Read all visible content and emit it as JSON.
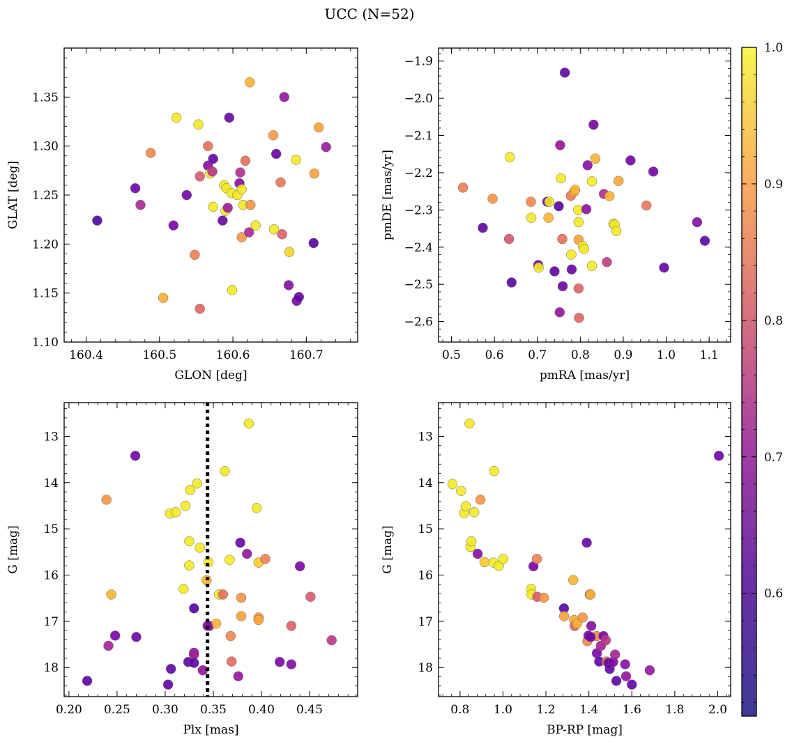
{
  "figure": {
    "title": "UCC (N=52)"
  },
  "colorbar": {
    "ticks": [
      "1.0",
      "0.9",
      "0.8",
      "0.7",
      "0.6"
    ],
    "range": [
      0.51,
      1.0
    ],
    "colormap": "plasma"
  },
  "chart_data": [
    {
      "id": "sky",
      "type": "scatter",
      "xlabel": "GLON [deg]",
      "ylabel": "GLAT [deg]",
      "xlim": [
        160.37,
        160.77
      ],
      "ylim": [
        1.1,
        1.4
      ],
      "xticks": [
        160.4,
        160.5,
        160.6,
        160.7
      ],
      "xtick_labels": [
        "160.4",
        "160.5",
        "160.6",
        "160.7"
      ],
      "yticks": [
        1.1,
        1.15,
        1.2,
        1.25,
        1.3,
        1.35
      ],
      "ytick_labels": [
        "1.10",
        "1.15",
        "1.20",
        "1.25",
        "1.30",
        "1.35"
      ],
      "points": [
        [
          160.415,
          1.224,
          0.52
        ],
        [
          160.467,
          1.257,
          0.56
        ],
        [
          160.474,
          1.24,
          0.66
        ],
        [
          160.488,
          1.293,
          0.84
        ],
        [
          160.505,
          1.145,
          0.9
        ],
        [
          160.519,
          1.219,
          0.58
        ],
        [
          160.523,
          1.329,
          0.98
        ],
        [
          160.537,
          1.25,
          0.57
        ],
        [
          160.548,
          1.189,
          0.83
        ],
        [
          160.553,
          1.322,
          0.98
        ],
        [
          160.555,
          1.134,
          0.78
        ],
        [
          160.555,
          1.269,
          0.76
        ],
        [
          160.566,
          1.3,
          0.8
        ],
        [
          160.566,
          1.28,
          0.6
        ],
        [
          160.569,
          1.272,
          0.98
        ],
        [
          160.573,
          1.287,
          0.55
        ],
        [
          160.572,
          1.274,
          0.69
        ],
        [
          160.573,
          1.238,
          0.98
        ],
        [
          160.586,
          1.224,
          0.55
        ],
        [
          160.588,
          1.26,
          0.98
        ],
        [
          160.59,
          1.234,
          0.98
        ],
        [
          160.591,
          1.257,
          0.98
        ],
        [
          160.593,
          1.237,
          0.64
        ],
        [
          160.595,
          1.329,
          0.56
        ],
        [
          160.598,
          1.252,
          0.98
        ],
        [
          160.599,
          1.153,
          0.98
        ],
        [
          160.606,
          1.25,
          0.98
        ],
        [
          160.609,
          1.262,
          0.6
        ],
        [
          160.61,
          1.273,
          0.67
        ],
        [
          160.612,
          1.256,
          0.98
        ],
        [
          160.612,
          1.207,
          0.86
        ],
        [
          160.614,
          1.24,
          0.98
        ],
        [
          160.617,
          1.285,
          0.8
        ],
        [
          160.622,
          1.212,
          0.66
        ],
        [
          160.623,
          1.365,
          0.91
        ],
        [
          160.624,
          1.24,
          0.86
        ],
        [
          160.631,
          1.219,
          0.98
        ],
        [
          160.655,
          1.311,
          0.87
        ],
        [
          160.656,
          1.215,
          0.98
        ],
        [
          160.659,
          1.292,
          0.55
        ],
        [
          160.665,
          1.263,
          0.81
        ],
        [
          160.667,
          1.21,
          0.77
        ],
        [
          160.67,
          1.35,
          0.62
        ],
        [
          160.676,
          1.158,
          0.6
        ],
        [
          160.677,
          1.192,
          0.95
        ],
        [
          160.686,
          1.286,
          0.98
        ],
        [
          160.687,
          1.142,
          0.58
        ],
        [
          160.69,
          1.146,
          0.55
        ],
        [
          160.71,
          1.201,
          0.53
        ],
        [
          160.711,
          1.272,
          0.88
        ],
        [
          160.717,
          1.319,
          0.88
        ],
        [
          160.727,
          1.299,
          0.63
        ]
      ]
    },
    {
      "id": "pm",
      "type": "scatter",
      "xlabel": "pmRA [mas/yr]",
      "ylabel": "pmDE [mas/yr]",
      "xlim": [
        0.47,
        1.15
      ],
      "ylim": [
        -2.655,
        -1.865
      ],
      "xticks": [
        0.5,
        0.6,
        0.7,
        0.8,
        0.9,
        1.0,
        1.1
      ],
      "xtick_labels": [
        "0.5",
        "0.6",
        "0.7",
        "0.8",
        "0.9",
        "1.0",
        "1.1"
      ],
      "yticks": [
        -2.6,
        -2.5,
        -2.4,
        -2.3,
        -2.2,
        -2.1,
        -2.0,
        -1.9
      ],
      "ytick_labels": [
        "−2.6",
        "−2.5",
        "−2.4",
        "−2.3",
        "−2.2",
        "−2.1",
        "−2.0",
        "−1.9"
      ],
      "points": [
        [
          0.527,
          -2.24,
          0.82
        ],
        [
          0.573,
          -2.348,
          0.54
        ],
        [
          0.596,
          -2.27,
          0.86
        ],
        [
          0.636,
          -2.158,
          0.98
        ],
        [
          0.634,
          -2.378,
          0.75
        ],
        [
          0.64,
          -2.495,
          0.53
        ],
        [
          0.685,
          -2.278,
          0.84
        ],
        [
          0.686,
          -2.321,
          0.98
        ],
        [
          0.702,
          -2.448,
          0.58
        ],
        [
          0.703,
          -2.455,
          0.98
        ],
        [
          0.723,
          -2.278,
          0.58
        ],
        [
          0.726,
          -2.321,
          0.91
        ],
        [
          0.728,
          -2.278,
          0.98
        ],
        [
          0.74,
          -2.465,
          0.54
        ],
        [
          0.75,
          -2.29,
          0.54
        ],
        [
          0.752,
          -2.575,
          0.62
        ],
        [
          0.753,
          -2.126,
          0.62
        ],
        [
          0.755,
          -2.215,
          0.98
        ],
        [
          0.758,
          -2.378,
          0.8
        ],
        [
          0.759,
          -2.505,
          0.56
        ],
        [
          0.764,
          -1.931,
          0.54
        ],
        [
          0.778,
          -2.262,
          0.81
        ],
        [
          0.779,
          -2.42,
          0.98
        ],
        [
          0.78,
          -2.46,
          0.55
        ],
        [
          0.785,
          -2.252,
          0.9
        ],
        [
          0.788,
          -2.246,
          0.91
        ],
        [
          0.795,
          -2.3,
          0.98
        ],
        [
          0.796,
          -2.38,
          0.88
        ],
        [
          0.796,
          -2.333,
          0.98
        ],
        [
          0.796,
          -2.511,
          0.78
        ],
        [
          0.797,
          -2.59,
          0.78
        ],
        [
          0.806,
          -2.397,
          0.98
        ],
        [
          0.809,
          -2.405,
          0.98
        ],
        [
          0.814,
          -2.298,
          0.61
        ],
        [
          0.817,
          -2.18,
          0.6
        ],
        [
          0.827,
          -2.45,
          0.98
        ],
        [
          0.827,
          -2.223,
          0.98
        ],
        [
          0.831,
          -2.071,
          0.57
        ],
        [
          0.835,
          -2.162,
          0.91
        ],
        [
          0.855,
          -2.257,
          0.67
        ],
        [
          0.862,
          -2.44,
          0.7
        ],
        [
          0.868,
          -2.263,
          0.91
        ],
        [
          0.877,
          -2.337,
          0.98
        ],
        [
          0.88,
          -2.34,
          0.98
        ],
        [
          0.884,
          -2.357,
          0.98
        ],
        [
          0.889,
          -2.222,
          0.89
        ],
        [
          0.917,
          -2.167,
          0.57
        ],
        [
          0.954,
          -2.288,
          0.81
        ],
        [
          0.97,
          -2.197,
          0.57
        ],
        [
          0.995,
          -2.455,
          0.55
        ],
        [
          1.072,
          -2.333,
          0.6
        ],
        [
          1.09,
          -2.383,
          0.55
        ]
      ]
    },
    {
      "id": "plx",
      "type": "scatter",
      "xlabel": "Plx [mas]",
      "ylabel": "G [mag]",
      "xlim": [
        0.195,
        0.5
      ],
      "ylim": [
        18.63,
        12.27
      ],
      "xticks": [
        0.2,
        0.25,
        0.3,
        0.35,
        0.4,
        0.45
      ],
      "xtick_labels": [
        "0.20",
        "0.25",
        "0.30",
        "0.35",
        "0.40",
        "0.45"
      ],
      "yticks": [
        13,
        14,
        15,
        16,
        17,
        18
      ],
      "ytick_labels": [
        "13",
        "14",
        "15",
        "16",
        "17",
        "18"
      ],
      "vline": {
        "x": 0.344,
        "style": "dotted",
        "color": "#000000"
      },
      "points": [
        [
          0.219,
          18.29,
          0.54
        ],
        [
          0.239,
          14.37,
          0.86
        ],
        [
          0.241,
          17.53,
          0.65
        ],
        [
          0.244,
          16.42,
          0.91
        ],
        [
          0.248,
          17.31,
          0.58
        ],
        [
          0.269,
          13.42,
          0.56
        ],
        [
          0.27,
          17.34,
          0.56
        ],
        [
          0.303,
          18.37,
          0.54
        ],
        [
          0.305,
          14.67,
          0.98
        ],
        [
          0.306,
          18.03,
          0.54
        ],
        [
          0.311,
          14.64,
          0.98
        ],
        [
          0.319,
          16.3,
          0.98
        ],
        [
          0.321,
          14.5,
          0.98
        ],
        [
          0.324,
          17.88,
          0.54
        ],
        [
          0.325,
          15.79,
          0.98
        ],
        [
          0.325,
          15.27,
          0.98
        ],
        [
          0.326,
          14.16,
          0.98
        ],
        [
          0.33,
          17.68,
          0.6
        ],
        [
          0.33,
          17.72,
          0.65
        ],
        [
          0.33,
          16.72,
          0.53
        ],
        [
          0.33,
          17.9,
          0.54
        ],
        [
          0.333,
          14.02,
          0.98
        ],
        [
          0.336,
          15.41,
          0.98
        ],
        [
          0.339,
          18.06,
          0.62
        ],
        [
          0.343,
          16.11,
          0.91
        ],
        [
          0.345,
          15.72,
          0.98
        ],
        [
          0.346,
          17.1,
          0.61
        ],
        [
          0.353,
          17.05,
          0.91
        ],
        [
          0.356,
          16.42,
          0.98
        ],
        [
          0.36,
          16.42,
          0.8
        ],
        [
          0.362,
          13.75,
          0.98
        ],
        [
          0.367,
          15.67,
          0.98
        ],
        [
          0.368,
          17.32,
          0.84
        ],
        [
          0.369,
          17.87,
          0.79
        ],
        [
          0.376,
          18.19,
          0.62
        ],
        [
          0.378,
          15.3,
          0.55
        ],
        [
          0.379,
          16.89,
          0.88
        ],
        [
          0.379,
          16.49,
          0.86
        ],
        [
          0.385,
          15.54,
          0.62
        ],
        [
          0.387,
          12.72,
          0.98
        ],
        [
          0.395,
          14.55,
          0.98
        ],
        [
          0.397,
          15.73,
          0.94
        ],
        [
          0.397,
          16.92,
          0.86
        ],
        [
          0.397,
          16.97,
          0.89
        ],
        [
          0.404,
          15.65,
          0.83
        ],
        [
          0.419,
          17.88,
          0.58
        ],
        [
          0.431,
          17.1,
          0.77
        ],
        [
          0.431,
          17.93,
          0.6
        ],
        [
          0.44,
          15.81,
          0.58
        ],
        [
          0.451,
          16.47,
          0.76
        ],
        [
          0.473,
          17.41,
          0.69
        ],
        [
          0.344,
          17.1,
          0.6
        ]
      ]
    },
    {
      "id": "cmd",
      "type": "scatter",
      "xlabel": "BP-RP [mag]",
      "ylabel": "G [mag]",
      "xlim": [
        0.7,
        2.06
      ],
      "ylim": [
        18.63,
        12.27
      ],
      "xticks": [
        0.8,
        1.0,
        1.2,
        1.4,
        1.6,
        1.8,
        2.0
      ],
      "xtick_labels": [
        "0.8",
        "1.0",
        "1.2",
        "1.4",
        "1.6",
        "1.8",
        "2.0"
      ],
      "yticks": [
        13,
        14,
        15,
        16,
        17,
        18
      ],
      "ytick_labels": [
        "13",
        "14",
        "15",
        "16",
        "17",
        "18"
      ],
      "points": [
        [
          0.765,
          14.03,
          0.98
        ],
        [
          0.805,
          14.18,
          0.98
        ],
        [
          0.819,
          14.66,
          0.98
        ],
        [
          0.827,
          14.51,
          0.98
        ],
        [
          0.844,
          12.72,
          0.98
        ],
        [
          0.849,
          15.39,
          0.98
        ],
        [
          0.853,
          15.27,
          0.98
        ],
        [
          0.866,
          14.64,
          0.98
        ],
        [
          0.882,
          15.54,
          0.6
        ],
        [
          0.895,
          14.37,
          0.86
        ],
        [
          0.914,
          15.72,
          0.94
        ],
        [
          0.956,
          15.73,
          0.98
        ],
        [
          0.959,
          13.75,
          0.98
        ],
        [
          0.981,
          15.8,
          0.98
        ],
        [
          1.002,
          15.65,
          0.98
        ],
        [
          1.131,
          16.3,
          0.98
        ],
        [
          1.133,
          16.42,
          0.98
        ],
        [
          1.142,
          15.81,
          0.58
        ],
        [
          1.158,
          15.65,
          0.83
        ],
        [
          1.16,
          16.47,
          0.76
        ],
        [
          1.19,
          16.49,
          0.86
        ],
        [
          1.284,
          16.72,
          0.53
        ],
        [
          1.285,
          16.89,
          0.88
        ],
        [
          1.327,
          16.11,
          0.91
        ],
        [
          1.331,
          16.97,
          0.89
        ],
        [
          1.334,
          17.1,
          0.77
        ],
        [
          1.345,
          17.05,
          0.91
        ],
        [
          1.371,
          16.92,
          0.86
        ],
        [
          1.39,
          15.3,
          0.55
        ],
        [
          1.393,
          17.43,
          0.84
        ],
        [
          1.398,
          17.31,
          0.58
        ],
        [
          1.404,
          16.42,
          0.8
        ],
        [
          1.408,
          16.42,
          0.91
        ],
        [
          1.411,
          17.1,
          0.6
        ],
        [
          1.436,
          17.32,
          0.84
        ],
        [
          1.437,
          17.69,
          0.58
        ],
        [
          1.448,
          17.87,
          0.54
        ],
        [
          1.456,
          17.53,
          0.65
        ],
        [
          1.468,
          17.32,
          0.58
        ],
        [
          1.479,
          17.41,
          0.69
        ],
        [
          1.482,
          17.87,
          0.79
        ],
        [
          1.492,
          17.9,
          0.54
        ],
        [
          1.497,
          18.03,
          0.54
        ],
        [
          1.513,
          17.88,
          0.58
        ],
        [
          1.522,
          17.72,
          0.65
        ],
        [
          1.528,
          18.29,
          0.54
        ],
        [
          1.569,
          17.93,
          0.6
        ],
        [
          1.573,
          18.19,
          0.62
        ],
        [
          1.6,
          18.37,
          0.54
        ],
        [
          1.683,
          18.06,
          0.62
        ],
        [
          2.005,
          13.42,
          0.56
        ],
        [
          1.408,
          17.34,
          0.56
        ]
      ]
    }
  ]
}
